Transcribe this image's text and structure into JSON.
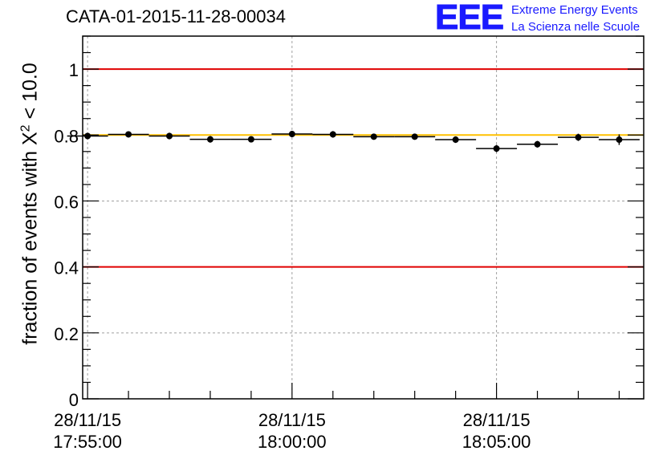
{
  "title": "CATA-01-2015-11-28-00034",
  "logo": {
    "mark": "EEE",
    "line1": "Extreme Energy Events",
    "line2": "La Scienza nelle Scuole",
    "color": "#1a1aff"
  },
  "chart_data": {
    "type": "scatter",
    "title": "CATA-01-2015-11-28-00034",
    "ylabel_pre": "fraction of events with X",
    "ylabel_sup": "2",
    "ylabel_post": " < 10.0",
    "xlabel": "",
    "ylim": [
      0,
      1.1
    ],
    "yticks": [
      "0",
      "0.2",
      "0.4",
      "0.6",
      "0.8",
      "1"
    ],
    "xticks": [
      {
        "line1": "28/11/15",
        "line2": "17:55:00",
        "minute": 0
      },
      {
        "line1": "28/11/15",
        "line2": "18:00:00",
        "minute": 5
      },
      {
        "line1": "28/11/15",
        "line2": "18:05:00",
        "minute": 10
      }
    ],
    "xlim_minutes": [
      -0.12,
      13.6
    ],
    "grid": true,
    "reference_lines": [
      {
        "value": 1.0,
        "color": "#e00000"
      },
      {
        "value": 0.4,
        "color": "#e00000"
      },
      {
        "value": 0.8,
        "color": "#ffc000"
      }
    ],
    "points": [
      {
        "x": 0.0,
        "y": 0.797,
        "err": 0.01,
        "xerr": 0.5
      },
      {
        "x": 1.0,
        "y": 0.802,
        "err": 0.009,
        "xerr": 0.5
      },
      {
        "x": 2.0,
        "y": 0.797,
        "err": 0.01,
        "xerr": 0.5
      },
      {
        "x": 3.0,
        "y": 0.787,
        "err": 0.01,
        "xerr": 0.5
      },
      {
        "x": 4.0,
        "y": 0.787,
        "err": 0.009,
        "xerr": 0.5
      },
      {
        "x": 5.0,
        "y": 0.803,
        "err": 0.009,
        "xerr": 0.5
      },
      {
        "x": 6.0,
        "y": 0.802,
        "err": 0.01,
        "xerr": 0.5
      },
      {
        "x": 7.0,
        "y": 0.795,
        "err": 0.009,
        "xerr": 0.5
      },
      {
        "x": 8.0,
        "y": 0.795,
        "err": 0.009,
        "xerr": 0.5
      },
      {
        "x": 9.0,
        "y": 0.786,
        "err": 0.01,
        "xerr": 0.5
      },
      {
        "x": 10.0,
        "y": 0.759,
        "err": 0.011,
        "xerr": 0.5
      },
      {
        "x": 11.0,
        "y": 0.772,
        "err": 0.01,
        "xerr": 0.5
      },
      {
        "x": 12.0,
        "y": 0.793,
        "err": 0.011,
        "xerr": 0.5
      },
      {
        "x": 13.0,
        "y": 0.786,
        "err": 0.016,
        "xerr": 0.5
      }
    ]
  }
}
